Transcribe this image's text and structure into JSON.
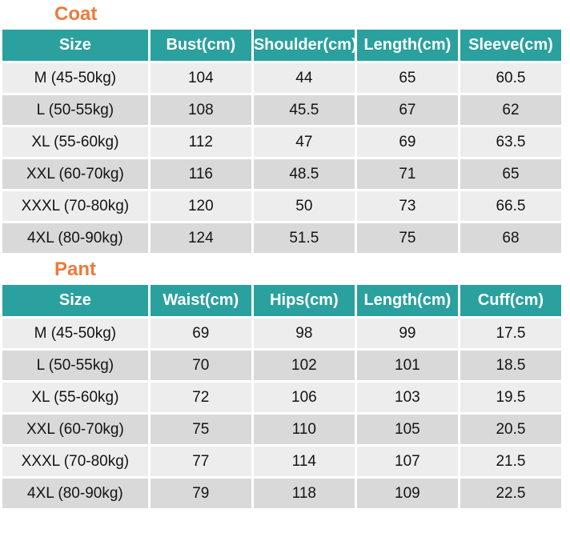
{
  "colors": {
    "header_bg": "#2aa19e",
    "header_text": "#ffffff",
    "title_color": "#ed7a3a",
    "row_light": "#ededed",
    "row_dark": "#d9d9d9",
    "text_color": "#141414"
  },
  "chart_data": [
    {
      "type": "table",
      "title": "Coat",
      "columns": [
        "Size",
        "Bust(cm)",
        "Shoulder(cm)",
        "Length(cm)",
        "Sleeve(cm)"
      ],
      "rows": [
        [
          "M (45-50kg)",
          "104",
          "44",
          "65",
          "60.5"
        ],
        [
          "L (50-55kg)",
          "108",
          "45.5",
          "67",
          "62"
        ],
        [
          "XL (55-60kg)",
          "112",
          "47",
          "69",
          "63.5"
        ],
        [
          "XXL (60-70kg)",
          "116",
          "48.5",
          "71",
          "65"
        ],
        [
          "XXXL (70-80kg)",
          "120",
          "50",
          "73",
          "66.5"
        ],
        [
          "4XL (80-90kg)",
          "124",
          "51.5",
          "75",
          "68"
        ]
      ]
    },
    {
      "type": "table",
      "title": "Pant",
      "columns": [
        "Size",
        "Waist(cm)",
        "Hips(cm)",
        "Length(cm)",
        "Cuff(cm)"
      ],
      "rows": [
        [
          "M (45-50kg)",
          "69",
          "98",
          "99",
          "17.5"
        ],
        [
          "L (50-55kg)",
          "70",
          "102",
          "101",
          "18.5"
        ],
        [
          "XL (55-60kg)",
          "72",
          "106",
          "103",
          "19.5"
        ],
        [
          "XXL (60-70kg)",
          "75",
          "110",
          "105",
          "20.5"
        ],
        [
          "XXXL (70-80kg)",
          "77",
          "114",
          "107",
          "21.5"
        ],
        [
          "4XL (80-90kg)",
          "79",
          "118",
          "109",
          "22.5"
        ]
      ]
    }
  ]
}
